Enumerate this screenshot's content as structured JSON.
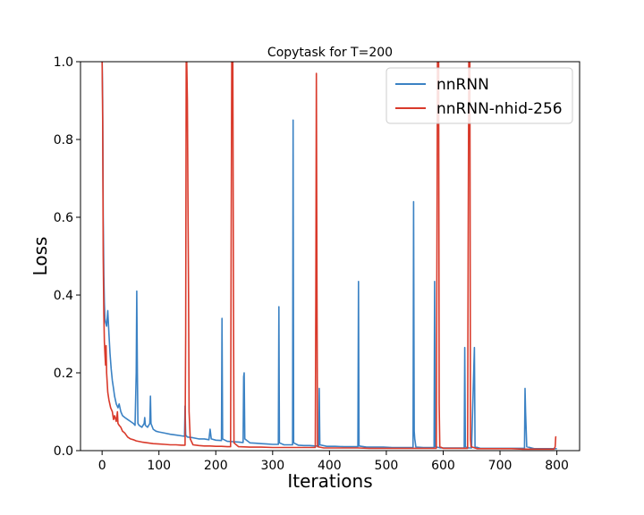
{
  "chart_data": {
    "type": "line",
    "title": "Copytask for T=200",
    "xlabel": "Iterations",
    "ylabel": "Loss",
    "xlim": [
      -38,
      840
    ],
    "ylim": [
      0.0,
      1.0
    ],
    "xticks": [
      0,
      100,
      200,
      300,
      400,
      500,
      600,
      700,
      800
    ],
    "yticks": [
      0.0,
      0.2,
      0.4,
      0.6,
      0.8,
      1.0
    ],
    "ytick_labels": [
      "0.0",
      "0.2",
      "0.4",
      "0.6",
      "0.8",
      "1.0"
    ],
    "legend_position": "upper-right",
    "grid": false,
    "series": [
      {
        "name": "nnRNN",
        "color": "#3b82c4",
        "points": [
          [
            0,
            1.0
          ],
          [
            1,
            0.9
          ],
          [
            2,
            0.6
          ],
          [
            3,
            0.45
          ],
          [
            4,
            0.38
          ],
          [
            5,
            0.34
          ],
          [
            6,
            0.33
          ],
          [
            8,
            0.32
          ],
          [
            10,
            0.36
          ],
          [
            12,
            0.3
          ],
          [
            14,
            0.25
          ],
          [
            16,
            0.21
          ],
          [
            18,
            0.18
          ],
          [
            20,
            0.16
          ],
          [
            22,
            0.14
          ],
          [
            25,
            0.12
          ],
          [
            28,
            0.11
          ],
          [
            30,
            0.12
          ],
          [
            33,
            0.1
          ],
          [
            36,
            0.09
          ],
          [
            40,
            0.085
          ],
          [
            45,
            0.08
          ],
          [
            50,
            0.075
          ],
          [
            55,
            0.07
          ],
          [
            58,
            0.065
          ],
          [
            60,
            0.2
          ],
          [
            61,
            0.41
          ],
          [
            62,
            0.2
          ],
          [
            63,
            0.07
          ],
          [
            65,
            0.065
          ],
          [
            70,
            0.06
          ],
          [
            74,
            0.07
          ],
          [
            75,
            0.085
          ],
          [
            76,
            0.065
          ],
          [
            80,
            0.06
          ],
          [
            84,
            0.07
          ],
          [
            85,
            0.14
          ],
          [
            86,
            0.07
          ],
          [
            90,
            0.055
          ],
          [
            95,
            0.05
          ],
          [
            100,
            0.048
          ],
          [
            110,
            0.045
          ],
          [
            120,
            0.042
          ],
          [
            130,
            0.04
          ],
          [
            140,
            0.038
          ],
          [
            145,
            0.037
          ],
          [
            146,
            0.115
          ],
          [
            147,
            0.04
          ],
          [
            150,
            0.035
          ],
          [
            160,
            0.033
          ],
          [
            170,
            0.03
          ],
          [
            180,
            0.03
          ],
          [
            188,
            0.028
          ],
          [
            190,
            0.055
          ],
          [
            192,
            0.03
          ],
          [
            200,
            0.027
          ],
          [
            210,
            0.026
          ],
          [
            211,
            0.34
          ],
          [
            212,
            0.03
          ],
          [
            220,
            0.024
          ],
          [
            230,
            0.023
          ],
          [
            240,
            0.022
          ],
          [
            248,
            0.021
          ],
          [
            249,
            0.19
          ],
          [
            250,
            0.2
          ],
          [
            251,
            0.03
          ],
          [
            260,
            0.02
          ],
          [
            270,
            0.019
          ],
          [
            280,
            0.018
          ],
          [
            290,
            0.017
          ],
          [
            300,
            0.016
          ],
          [
            310,
            0.016
          ],
          [
            311,
            0.37
          ],
          [
            312,
            0.02
          ],
          [
            320,
            0.015
          ],
          [
            330,
            0.015
          ],
          [
            335,
            0.015
          ],
          [
            336,
            0.85
          ],
          [
            337,
            0.02
          ],
          [
            345,
            0.014
          ],
          [
            355,
            0.013
          ],
          [
            365,
            0.013
          ],
          [
            375,
            0.012
          ],
          [
            381,
            0.012
          ],
          [
            382,
            0.16
          ],
          [
            383,
            0.015
          ],
          [
            395,
            0.011
          ],
          [
            410,
            0.011
          ],
          [
            425,
            0.01
          ],
          [
            440,
            0.01
          ],
          [
            450,
            0.01
          ],
          [
            451,
            0.435
          ],
          [
            452,
            0.012
          ],
          [
            465,
            0.009
          ],
          [
            480,
            0.009
          ],
          [
            495,
            0.009
          ],
          [
            510,
            0.008
          ],
          [
            525,
            0.008
          ],
          [
            540,
            0.008
          ],
          [
            547,
            0.008
          ],
          [
            548,
            0.64
          ],
          [
            549,
            0.05
          ],
          [
            550,
            0.03
          ],
          [
            552,
            0.009
          ],
          [
            565,
            0.008
          ],
          [
            575,
            0.008
          ],
          [
            584,
            0.008
          ],
          [
            585,
            0.435
          ],
          [
            586,
            0.01
          ],
          [
            595,
            0.007
          ],
          [
            610,
            0.007
          ],
          [
            625,
            0.007
          ],
          [
            637,
            0.007
          ],
          [
            638,
            0.265
          ],
          [
            639,
            0.01
          ],
          [
            645,
            0.007
          ],
          [
            650,
            0.007
          ],
          [
            655,
            0.265
          ],
          [
            656,
            0.01
          ],
          [
            665,
            0.006
          ],
          [
            680,
            0.006
          ],
          [
            700,
            0.006
          ],
          [
            720,
            0.006
          ],
          [
            740,
            0.006
          ],
          [
            743,
            0.006
          ],
          [
            744,
            0.16
          ],
          [
            745,
            0.1
          ],
          [
            747,
            0.01
          ],
          [
            760,
            0.005
          ],
          [
            780,
            0.005
          ],
          [
            800,
            0.005
          ]
        ]
      },
      {
        "name": "nnRNN-nhid-256",
        "color": "#d93a2b",
        "points": [
          [
            0,
            1.0
          ],
          [
            1,
            0.85
          ],
          [
            2,
            0.5
          ],
          [
            3,
            0.35
          ],
          [
            4,
            0.28
          ],
          [
            5,
            0.25
          ],
          [
            6,
            0.22
          ],
          [
            7,
            0.27
          ],
          [
            8,
            0.2
          ],
          [
            10,
            0.15
          ],
          [
            12,
            0.13
          ],
          [
            15,
            0.11
          ],
          [
            18,
            0.1
          ],
          [
            20,
            0.08
          ],
          [
            22,
            0.09
          ],
          [
            25,
            0.075
          ],
          [
            27,
            0.1
          ],
          [
            28,
            0.07
          ],
          [
            30,
            0.065
          ],
          [
            33,
            0.06
          ],
          [
            36,
            0.05
          ],
          [
            40,
            0.045
          ],
          [
            45,
            0.035
          ],
          [
            50,
            0.03
          ],
          [
            55,
            0.028
          ],
          [
            60,
            0.025
          ],
          [
            70,
            0.022
          ],
          [
            80,
            0.02
          ],
          [
            90,
            0.018
          ],
          [
            100,
            0.017
          ],
          [
            110,
            0.016
          ],
          [
            120,
            0.015
          ],
          [
            130,
            0.015
          ],
          [
            140,
            0.014
          ],
          [
            146,
            0.014
          ],
          [
            147,
            0.3
          ],
          [
            148,
            1.0
          ],
          [
            149,
            1.0
          ],
          [
            150,
            0.9
          ],
          [
            151,
            0.66
          ],
          [
            152,
            0.4
          ],
          [
            153,
            0.1
          ],
          [
            155,
            0.03
          ],
          [
            160,
            0.015
          ],
          [
            170,
            0.013
          ],
          [
            180,
            0.012
          ],
          [
            190,
            0.012
          ],
          [
            200,
            0.011
          ],
          [
            210,
            0.011
          ],
          [
            220,
            0.01
          ],
          [
            226,
            0.01
          ],
          [
            227,
            0.5
          ],
          [
            228,
            1.0
          ],
          [
            230,
            1.0
          ],
          [
            231,
            0.4
          ],
          [
            232,
            0.02
          ],
          [
            240,
            0.01
          ],
          [
            260,
            0.009
          ],
          [
            280,
            0.009
          ],
          [
            300,
            0.008
          ],
          [
            320,
            0.008
          ],
          [
            340,
            0.008
          ],
          [
            360,
            0.008
          ],
          [
            375,
            0.008
          ],
          [
            376,
            0.4
          ],
          [
            377,
            0.97
          ],
          [
            378,
            0.4
          ],
          [
            379,
            0.01
          ],
          [
            390,
            0.007
          ],
          [
            410,
            0.007
          ],
          [
            430,
            0.007
          ],
          [
            450,
            0.007
          ],
          [
            470,
            0.006
          ],
          [
            490,
            0.006
          ],
          [
            510,
            0.006
          ],
          [
            530,
            0.006
          ],
          [
            550,
            0.006
          ],
          [
            570,
            0.006
          ],
          [
            588,
            0.006
          ],
          [
            589,
            0.5
          ],
          [
            590,
            1.0
          ],
          [
            592,
            1.0
          ],
          [
            593,
            0.12
          ],
          [
            594,
            0.01
          ],
          [
            600,
            0.006
          ],
          [
            620,
            0.006
          ],
          [
            640,
            0.006
          ],
          [
            643,
            0.006
          ],
          [
            644,
            0.5
          ],
          [
            645,
            1.0
          ],
          [
            647,
            1.0
          ],
          [
            648,
            0.03
          ],
          [
            649,
            0.01
          ],
          [
            660,
            0.005
          ],
          [
            680,
            0.005
          ],
          [
            700,
            0.005
          ],
          [
            720,
            0.005
          ],
          [
            740,
            0.004
          ],
          [
            760,
            0.004
          ],
          [
            780,
            0.004
          ],
          [
            795,
            0.004
          ],
          [
            797,
            0.01
          ],
          [
            798,
            0.035
          ],
          [
            799,
            0.036
          ]
        ]
      }
    ]
  }
}
